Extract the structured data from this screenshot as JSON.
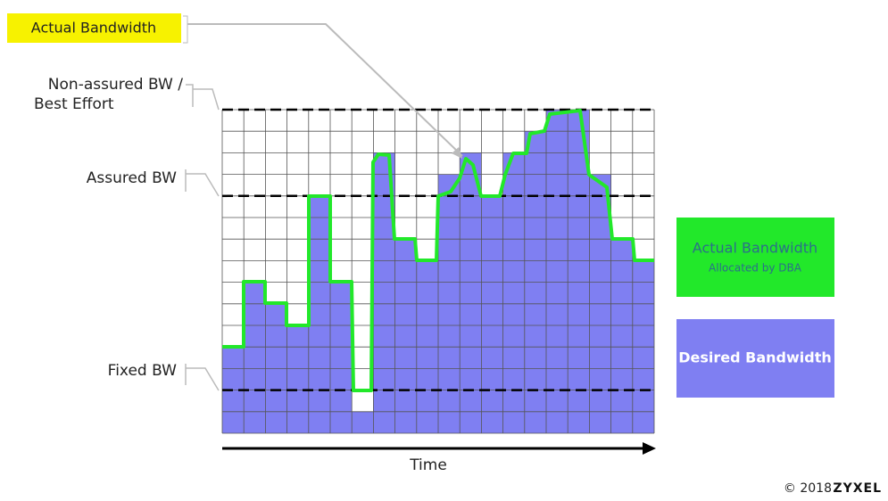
{
  "header": {
    "callout": "Actual Bandwidth"
  },
  "labels": {
    "non_assured": [
      "Non-assured BW /",
      "Best Effort"
    ],
    "assured": "Assured BW",
    "fixed": "Fixed BW",
    "x_axis": "Time"
  },
  "legend": {
    "actual": {
      "title": "Actual Bandwidth",
      "subtitle": "Allocated by DBA"
    },
    "desired": "Desired Bandwidth"
  },
  "footer": {
    "copyright": "© 2018",
    "brand": "ZYXEL"
  }
}
